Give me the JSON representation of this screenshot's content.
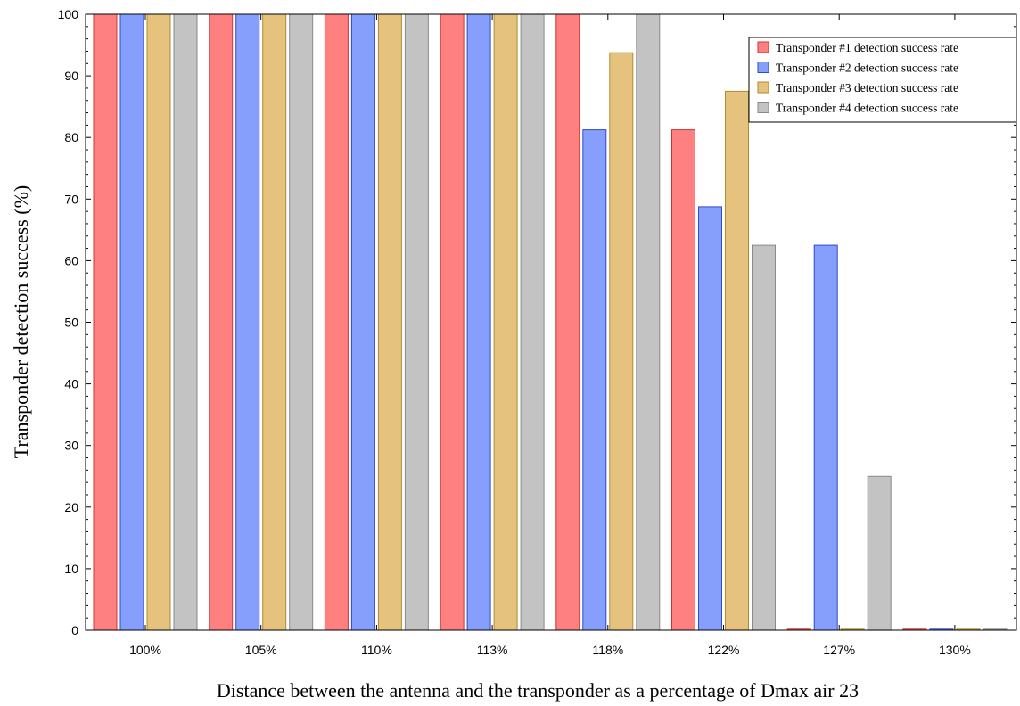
{
  "chart_data": {
    "type": "bar",
    "title": "",
    "xlabel": "Distance between the antenna and the transponder as a percentage of Dmax  air  23",
    "ylabel": "Transponder detection success (%)",
    "ylim": [
      0,
      100
    ],
    "yticks": [
      0,
      10,
      20,
      30,
      40,
      50,
      60,
      70,
      80,
      90,
      100
    ],
    "grid": false,
    "legend_position": "top-right",
    "categories": [
      "100%",
      "105%",
      "110%",
      "113%",
      "118%",
      "122%",
      "127%",
      "130%"
    ],
    "series": [
      {
        "name": "Transponder #1 detection success  rate",
        "color": "#ff8080",
        "border": "#cc3333",
        "values": [
          100,
          100,
          100,
          100,
          100,
          81.25,
          0,
          0
        ]
      },
      {
        "name": "Transponder #2 detection success  rate",
        "color": "#869ffc",
        "border": "#2b4bcc",
        "values": [
          100,
          100,
          100,
          100,
          81.25,
          68.75,
          62.5,
          0
        ]
      },
      {
        "name": "Transponder #3 detection success  rate",
        "color": "#e5c27d",
        "border": "#b38a2e",
        "values": [
          100,
          100,
          100,
          100,
          93.75,
          87.5,
          0,
          0
        ]
      },
      {
        "name": "Transponder #4 detection success  rate",
        "color": "#c3c3c3",
        "border": "#8a8a8a",
        "values": [
          100,
          100,
          100,
          100,
          100,
          62.5,
          25,
          0
        ]
      }
    ]
  }
}
